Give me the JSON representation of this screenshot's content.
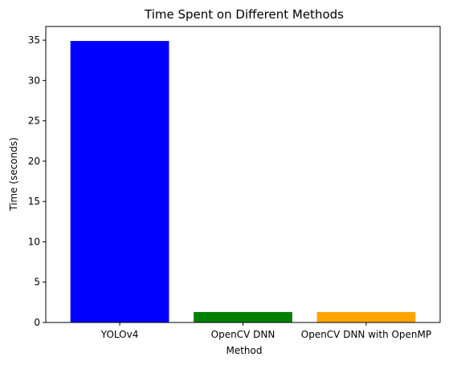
{
  "chart_data": {
    "type": "bar",
    "title": "Time Spent on Different Methods",
    "xlabel": "Method",
    "ylabel": "Time (seconds)",
    "categories": [
      "YOLOv4",
      "OpenCV DNN",
      "OpenCV DNN with OpenMP"
    ],
    "values": [
      34.9,
      1.3,
      1.3
    ],
    "colors": [
      "#0000ff",
      "#008000",
      "#ffa500"
    ],
    "ylim": [
      0,
      36.7
    ],
    "yticks": [
      "0",
      "5",
      "10",
      "15",
      "20",
      "25",
      "30",
      "35"
    ],
    "grid": false,
    "legend": "none"
  }
}
